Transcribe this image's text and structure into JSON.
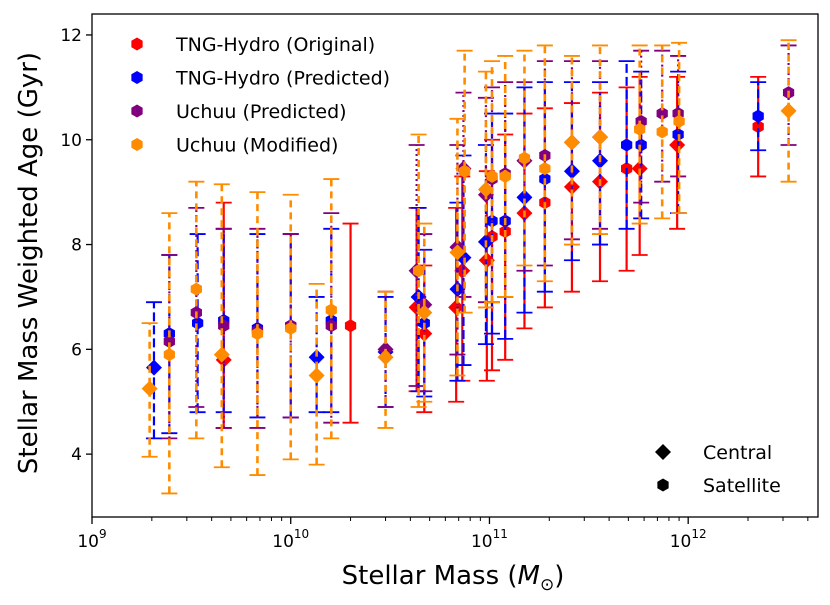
{
  "chart_data": {
    "type": "scatter",
    "title": "",
    "xlabel": {
      "main": "Stellar Mass (",
      "symbol": "M",
      "sub": "⊙",
      "close": ")"
    },
    "ylabel": "Stellar Mass Weighted Age (Gyr)",
    "x_scale": "log",
    "xlim": [
      1000000000.0,
      4500000000000.0
    ],
    "ylim": [
      2.8,
      12.4
    ],
    "x_ticks": [
      {
        "value": 1000000000.0,
        "base": "10",
        "exp": "9"
      },
      {
        "value": 10000000000.0,
        "base": "10",
        "exp": "10"
      },
      {
        "value": 100000000000.0,
        "base": "10",
        "exp": "11"
      },
      {
        "value": 1000000000000.0,
        "base": "10",
        "exp": "12"
      }
    ],
    "y_ticks": [
      {
        "value": 4,
        "label": "4"
      },
      {
        "value": 6,
        "label": "6"
      },
      {
        "value": 8,
        "label": "8"
      },
      {
        "value": 10,
        "label": "10"
      },
      {
        "value": 12,
        "label": "12"
      }
    ],
    "series": [
      {
        "name": "TNG-Hydro (Original)",
        "color": "#ff0000",
        "points": [
          {
            "x": 4600000000.0,
            "y": 5.8,
            "lo": 4.5,
            "hi": 8.8,
            "kind": "central"
          },
          {
            "x": 20000000000.0,
            "y": 6.45,
            "lo": 4.6,
            "hi": 8.4,
            "kind": "satellite"
          },
          {
            "x": 43000000000.0,
            "y": 6.8,
            "lo": 5.2,
            "hi": 8.7,
            "kind": "central"
          },
          {
            "x": 47000000000.0,
            "y": 6.3,
            "lo": 4.8,
            "hi": 7.6,
            "kind": "central"
          },
          {
            "x": 68000000000.0,
            "y": 6.8,
            "lo": 5.0,
            "hi": 8.7,
            "kind": "central"
          },
          {
            "x": 73000000000.0,
            "y": 7.5,
            "lo": 5.4,
            "hi": 9.3,
            "kind": "central"
          },
          {
            "x": 97000000000.0,
            "y": 7.7,
            "lo": 5.4,
            "hi": 9.4,
            "kind": "central"
          },
          {
            "x": 103000000000.0,
            "y": 8.15,
            "lo": 5.6,
            "hi": 10.0,
            "kind": "satellite"
          },
          {
            "x": 120000000000.0,
            "y": 8.25,
            "lo": 5.8,
            "hi": 10.1,
            "kind": "satellite"
          },
          {
            "x": 150000000000.0,
            "y": 8.6,
            "lo": 6.4,
            "hi": 10.5,
            "kind": "central"
          },
          {
            "x": 190000000000.0,
            "y": 8.8,
            "lo": 6.8,
            "hi": 10.6,
            "kind": "satellite"
          },
          {
            "x": 260000000000.0,
            "y": 9.1,
            "lo": 7.1,
            "hi": 10.7,
            "kind": "central"
          },
          {
            "x": 360000000000.0,
            "y": 9.2,
            "lo": 7.3,
            "hi": 10.9,
            "kind": "central"
          },
          {
            "x": 490000000000.0,
            "y": 9.45,
            "lo": 7.5,
            "hi": 11.0,
            "kind": "satellite"
          },
          {
            "x": 570000000000.0,
            "y": 9.45,
            "lo": 7.8,
            "hi": 11.2,
            "kind": "central"
          },
          {
            "x": 880000000000.0,
            "y": 9.9,
            "lo": 8.3,
            "hi": 11.2,
            "kind": "central"
          },
          {
            "x": 2250000000000.0,
            "y": 10.25,
            "lo": 9.3,
            "hi": 11.2,
            "kind": "satellite"
          }
        ]
      },
      {
        "name": "TNG-Hydro (Predicted)",
        "color": "#0000ff",
        "points": [
          {
            "x": 2050000000.0,
            "y": 5.65,
            "lo": 4.3,
            "hi": 6.9,
            "kind": "central"
          },
          {
            "x": 2450000000.0,
            "y": 6.3,
            "lo": 4.4,
            "hi": 7.8,
            "kind": "satellite"
          },
          {
            "x": 3400000000.0,
            "y": 6.5,
            "lo": 4.8,
            "hi": 8.2,
            "kind": "satellite"
          },
          {
            "x": 4600000000.0,
            "y": 6.55,
            "lo": 4.8,
            "hi": 8.3,
            "kind": "satellite"
          },
          {
            "x": 6800000000.0,
            "y": 6.4,
            "lo": 4.7,
            "hi": 8.2,
            "kind": "satellite"
          },
          {
            "x": 10000000000.0,
            "y": 6.45,
            "lo": 4.7,
            "hi": 8.2,
            "kind": "satellite"
          },
          {
            "x": 13500000000.0,
            "y": 5.85,
            "lo": 4.8,
            "hi": 7.0,
            "kind": "central"
          },
          {
            "x": 16000000000.0,
            "y": 6.55,
            "lo": 4.8,
            "hi": 8.3,
            "kind": "satellite"
          },
          {
            "x": 30000000000.0,
            "y": 5.95,
            "lo": 4.9,
            "hi": 7.0,
            "kind": "central"
          },
          {
            "x": 44000000000.0,
            "y": 7.0,
            "lo": 5.2,
            "hi": 8.7,
            "kind": "central"
          },
          {
            "x": 47000000000.0,
            "y": 6.5,
            "lo": 5.1,
            "hi": 7.9,
            "kind": "satellite"
          },
          {
            "x": 69000000000.0,
            "y": 7.15,
            "lo": 5.4,
            "hi": 8.8,
            "kind": "central"
          },
          {
            "x": 74000000000.0,
            "y": 7.75,
            "lo": 5.7,
            "hi": 9.7,
            "kind": "central"
          },
          {
            "x": 96000000000.0,
            "y": 8.05,
            "lo": 6.1,
            "hi": 9.9,
            "kind": "central"
          },
          {
            "x": 103000000000.0,
            "y": 8.45,
            "lo": 6.3,
            "hi": 10.5,
            "kind": "satellite"
          },
          {
            "x": 120000000000.0,
            "y": 8.45,
            "lo": 6.2,
            "hi": 10.5,
            "kind": "satellite"
          },
          {
            "x": 150000000000.0,
            "y": 8.9,
            "lo": 6.7,
            "hi": 11.0,
            "kind": "central"
          },
          {
            "x": 190000000000.0,
            "y": 9.25,
            "lo": 7.1,
            "hi": 11.1,
            "kind": "satellite"
          },
          {
            "x": 260000000000.0,
            "y": 9.4,
            "lo": 7.7,
            "hi": 11.1,
            "kind": "central"
          },
          {
            "x": 360000000000.0,
            "y": 9.6,
            "lo": 8.0,
            "hi": 11.1,
            "kind": "central"
          },
          {
            "x": 490000000000.0,
            "y": 9.9,
            "lo": 8.3,
            "hi": 11.5,
            "kind": "satellite"
          },
          {
            "x": 580000000000.0,
            "y": 9.9,
            "lo": 8.5,
            "hi": 11.3,
            "kind": "satellite"
          },
          {
            "x": 890000000000.0,
            "y": 10.1,
            "lo": 8.6,
            "hi": 11.3,
            "kind": "satellite"
          },
          {
            "x": 2250000000000.0,
            "y": 10.45,
            "lo": 9.8,
            "hi": 11.1,
            "kind": "satellite"
          }
        ]
      },
      {
        "name": "Uchuu (Predicted)",
        "color": "#800080",
        "points": [
          {
            "x": 2450000000.0,
            "y": 6.15,
            "lo": 4.3,
            "hi": 7.8,
            "kind": "satellite"
          },
          {
            "x": 3350000000.0,
            "y": 6.7,
            "lo": 4.9,
            "hi": 8.7,
            "kind": "satellite"
          },
          {
            "x": 4600000000.0,
            "y": 6.45,
            "lo": 4.5,
            "hi": 8.3,
            "kind": "satellite"
          },
          {
            "x": 6800000000.0,
            "y": 6.35,
            "lo": 4.5,
            "hi": 8.3,
            "kind": "satellite"
          },
          {
            "x": 10000000000.0,
            "y": 6.45,
            "lo": 4.7,
            "hi": 8.2,
            "kind": "satellite"
          },
          {
            "x": 16000000000.0,
            "y": 6.45,
            "lo": 4.6,
            "hi": 8.6,
            "kind": "satellite"
          },
          {
            "x": 30000000000.0,
            "y": 6.0,
            "lo": 4.9,
            "hi": 7.1,
            "kind": "central"
          },
          {
            "x": 43000000000.0,
            "y": 7.5,
            "lo": 5.3,
            "hi": 9.9,
            "kind": "central"
          },
          {
            "x": 47000000000.0,
            "y": 6.85,
            "lo": 5.2,
            "hi": 8.2,
            "kind": "central"
          },
          {
            "x": 69000000000.0,
            "y": 7.95,
            "lo": 5.9,
            "hi": 9.9,
            "kind": "central"
          },
          {
            "x": 74000000000.0,
            "y": 9.45,
            "lo": 7.0,
            "hi": 10.9,
            "kind": "central"
          },
          {
            "x": 96000000000.0,
            "y": 8.95,
            "lo": 6.9,
            "hi": 10.8,
            "kind": "central"
          },
          {
            "x": 103000000000.0,
            "y": 9.25,
            "lo": 6.9,
            "hi": 11.0,
            "kind": "satellite"
          },
          {
            "x": 120000000000.0,
            "y": 9.35,
            "lo": 7.0,
            "hi": 11.1,
            "kind": "satellite"
          },
          {
            "x": 150000000000.0,
            "y": 9.6,
            "lo": 7.5,
            "hi": 11.1,
            "kind": "central"
          },
          {
            "x": 190000000000.0,
            "y": 9.7,
            "lo": 7.6,
            "hi": 11.5,
            "kind": "satellite"
          },
          {
            "x": 260000000000.0,
            "y": 9.95,
            "lo": 8.1,
            "hi": 11.5,
            "kind": "central"
          },
          {
            "x": 360000000000.0,
            "y": 10.05,
            "lo": 8.3,
            "hi": 11.5,
            "kind": "central"
          },
          {
            "x": 580000000000.0,
            "y": 10.35,
            "lo": 8.8,
            "hi": 11.7,
            "kind": "satellite"
          },
          {
            "x": 740000000000.0,
            "y": 10.5,
            "lo": 9.2,
            "hi": 11.7,
            "kind": "satellite"
          },
          {
            "x": 890000000000.0,
            "y": 10.5,
            "lo": 9.3,
            "hi": 11.6,
            "kind": "satellite"
          },
          {
            "x": 3200000000000.0,
            "y": 10.9,
            "lo": 9.9,
            "hi": 11.8,
            "kind": "satellite"
          }
        ]
      },
      {
        "name": "Uchuu (Modified)",
        "color": "#ff8c00",
        "points": [
          {
            "x": 1950000000.0,
            "y": 5.25,
            "lo": 3.95,
            "hi": 6.5,
            "kind": "central"
          },
          {
            "x": 2450000000.0,
            "y": 5.9,
            "lo": 3.25,
            "hi": 8.6,
            "kind": "satellite"
          },
          {
            "x": 3350000000.0,
            "y": 7.15,
            "lo": 4.3,
            "hi": 9.2,
            "kind": "satellite"
          },
          {
            "x": 4500000000.0,
            "y": 5.9,
            "lo": 3.75,
            "hi": 9.15,
            "kind": "central"
          },
          {
            "x": 6800000000.0,
            "y": 6.3,
            "lo": 3.6,
            "hi": 9.0,
            "kind": "satellite"
          },
          {
            "x": 10000000000.0,
            "y": 6.4,
            "lo": 3.9,
            "hi": 8.95,
            "kind": "satellite"
          },
          {
            "x": 13500000000.0,
            "y": 5.5,
            "lo": 3.8,
            "hi": 7.25,
            "kind": "central"
          },
          {
            "x": 16000000000.0,
            "y": 6.75,
            "lo": 4.3,
            "hi": 9.25,
            "kind": "satellite"
          },
          {
            "x": 30000000000.0,
            "y": 5.85,
            "lo": 4.5,
            "hi": 7.1,
            "kind": "central"
          },
          {
            "x": 44000000000.0,
            "y": 7.5,
            "lo": 4.9,
            "hi": 10.1,
            "kind": "satellite"
          },
          {
            "x": 47000000000.0,
            "y": 6.7,
            "lo": 5.0,
            "hi": 8.4,
            "kind": "central"
          },
          {
            "x": 69000000000.0,
            "y": 7.85,
            "lo": 5.5,
            "hi": 10.4,
            "kind": "central"
          },
          {
            "x": 75000000000.0,
            "y": 9.4,
            "lo": 6.7,
            "hi": 11.7,
            "kind": "satellite"
          },
          {
            "x": 96000000000.0,
            "y": 9.05,
            "lo": 6.8,
            "hi": 11.3,
            "kind": "central"
          },
          {
            "x": 103000000000.0,
            "y": 9.3,
            "lo": 6.9,
            "hi": 11.5,
            "kind": "satellite"
          },
          {
            "x": 120000000000.0,
            "y": 9.3,
            "lo": 7.0,
            "hi": 11.6,
            "kind": "satellite"
          },
          {
            "x": 150000000000.0,
            "y": 9.65,
            "lo": 7.6,
            "hi": 11.7,
            "kind": "satellite"
          },
          {
            "x": 190000000000.0,
            "y": 9.45,
            "lo": 7.3,
            "hi": 11.8,
            "kind": "satellite"
          },
          {
            "x": 260000000000.0,
            "y": 9.95,
            "lo": 8.0,
            "hi": 11.6,
            "kind": "central"
          },
          {
            "x": 360000000000.0,
            "y": 10.05,
            "lo": 8.2,
            "hi": 11.8,
            "kind": "central"
          },
          {
            "x": 570000000000.0,
            "y": 10.2,
            "lo": 8.4,
            "hi": 11.8,
            "kind": "satellite"
          },
          {
            "x": 740000000000.0,
            "y": 10.15,
            "lo": 8.5,
            "hi": 11.8,
            "kind": "satellite"
          },
          {
            "x": 900000000000.0,
            "y": 10.35,
            "lo": 8.6,
            "hi": 11.85,
            "kind": "satellite"
          },
          {
            "x": 3200000000000.0,
            "y": 10.55,
            "lo": 9.2,
            "hi": 11.9,
            "kind": "central"
          }
        ]
      }
    ],
    "legend": {
      "placement": "top-left",
      "entries": [
        {
          "label": "TNG-Hydro (Original)",
          "color": "#ff0000"
        },
        {
          "label": "TNG-Hydro (Predicted)",
          "color": "#0000ff"
        },
        {
          "label": "Uchuu (Predicted)",
          "color": "#800080"
        },
        {
          "label": "Uchuu (Modified)",
          "color": "#ff8c00"
        }
      ]
    },
    "marker_legend": {
      "placement": "bottom-right",
      "entries": [
        {
          "label": "Central",
          "marker": "diamond",
          "color": "#000000"
        },
        {
          "label": "Satellite",
          "marker": "hexagon",
          "color": "#000000"
        }
      ]
    },
    "grid": false
  }
}
